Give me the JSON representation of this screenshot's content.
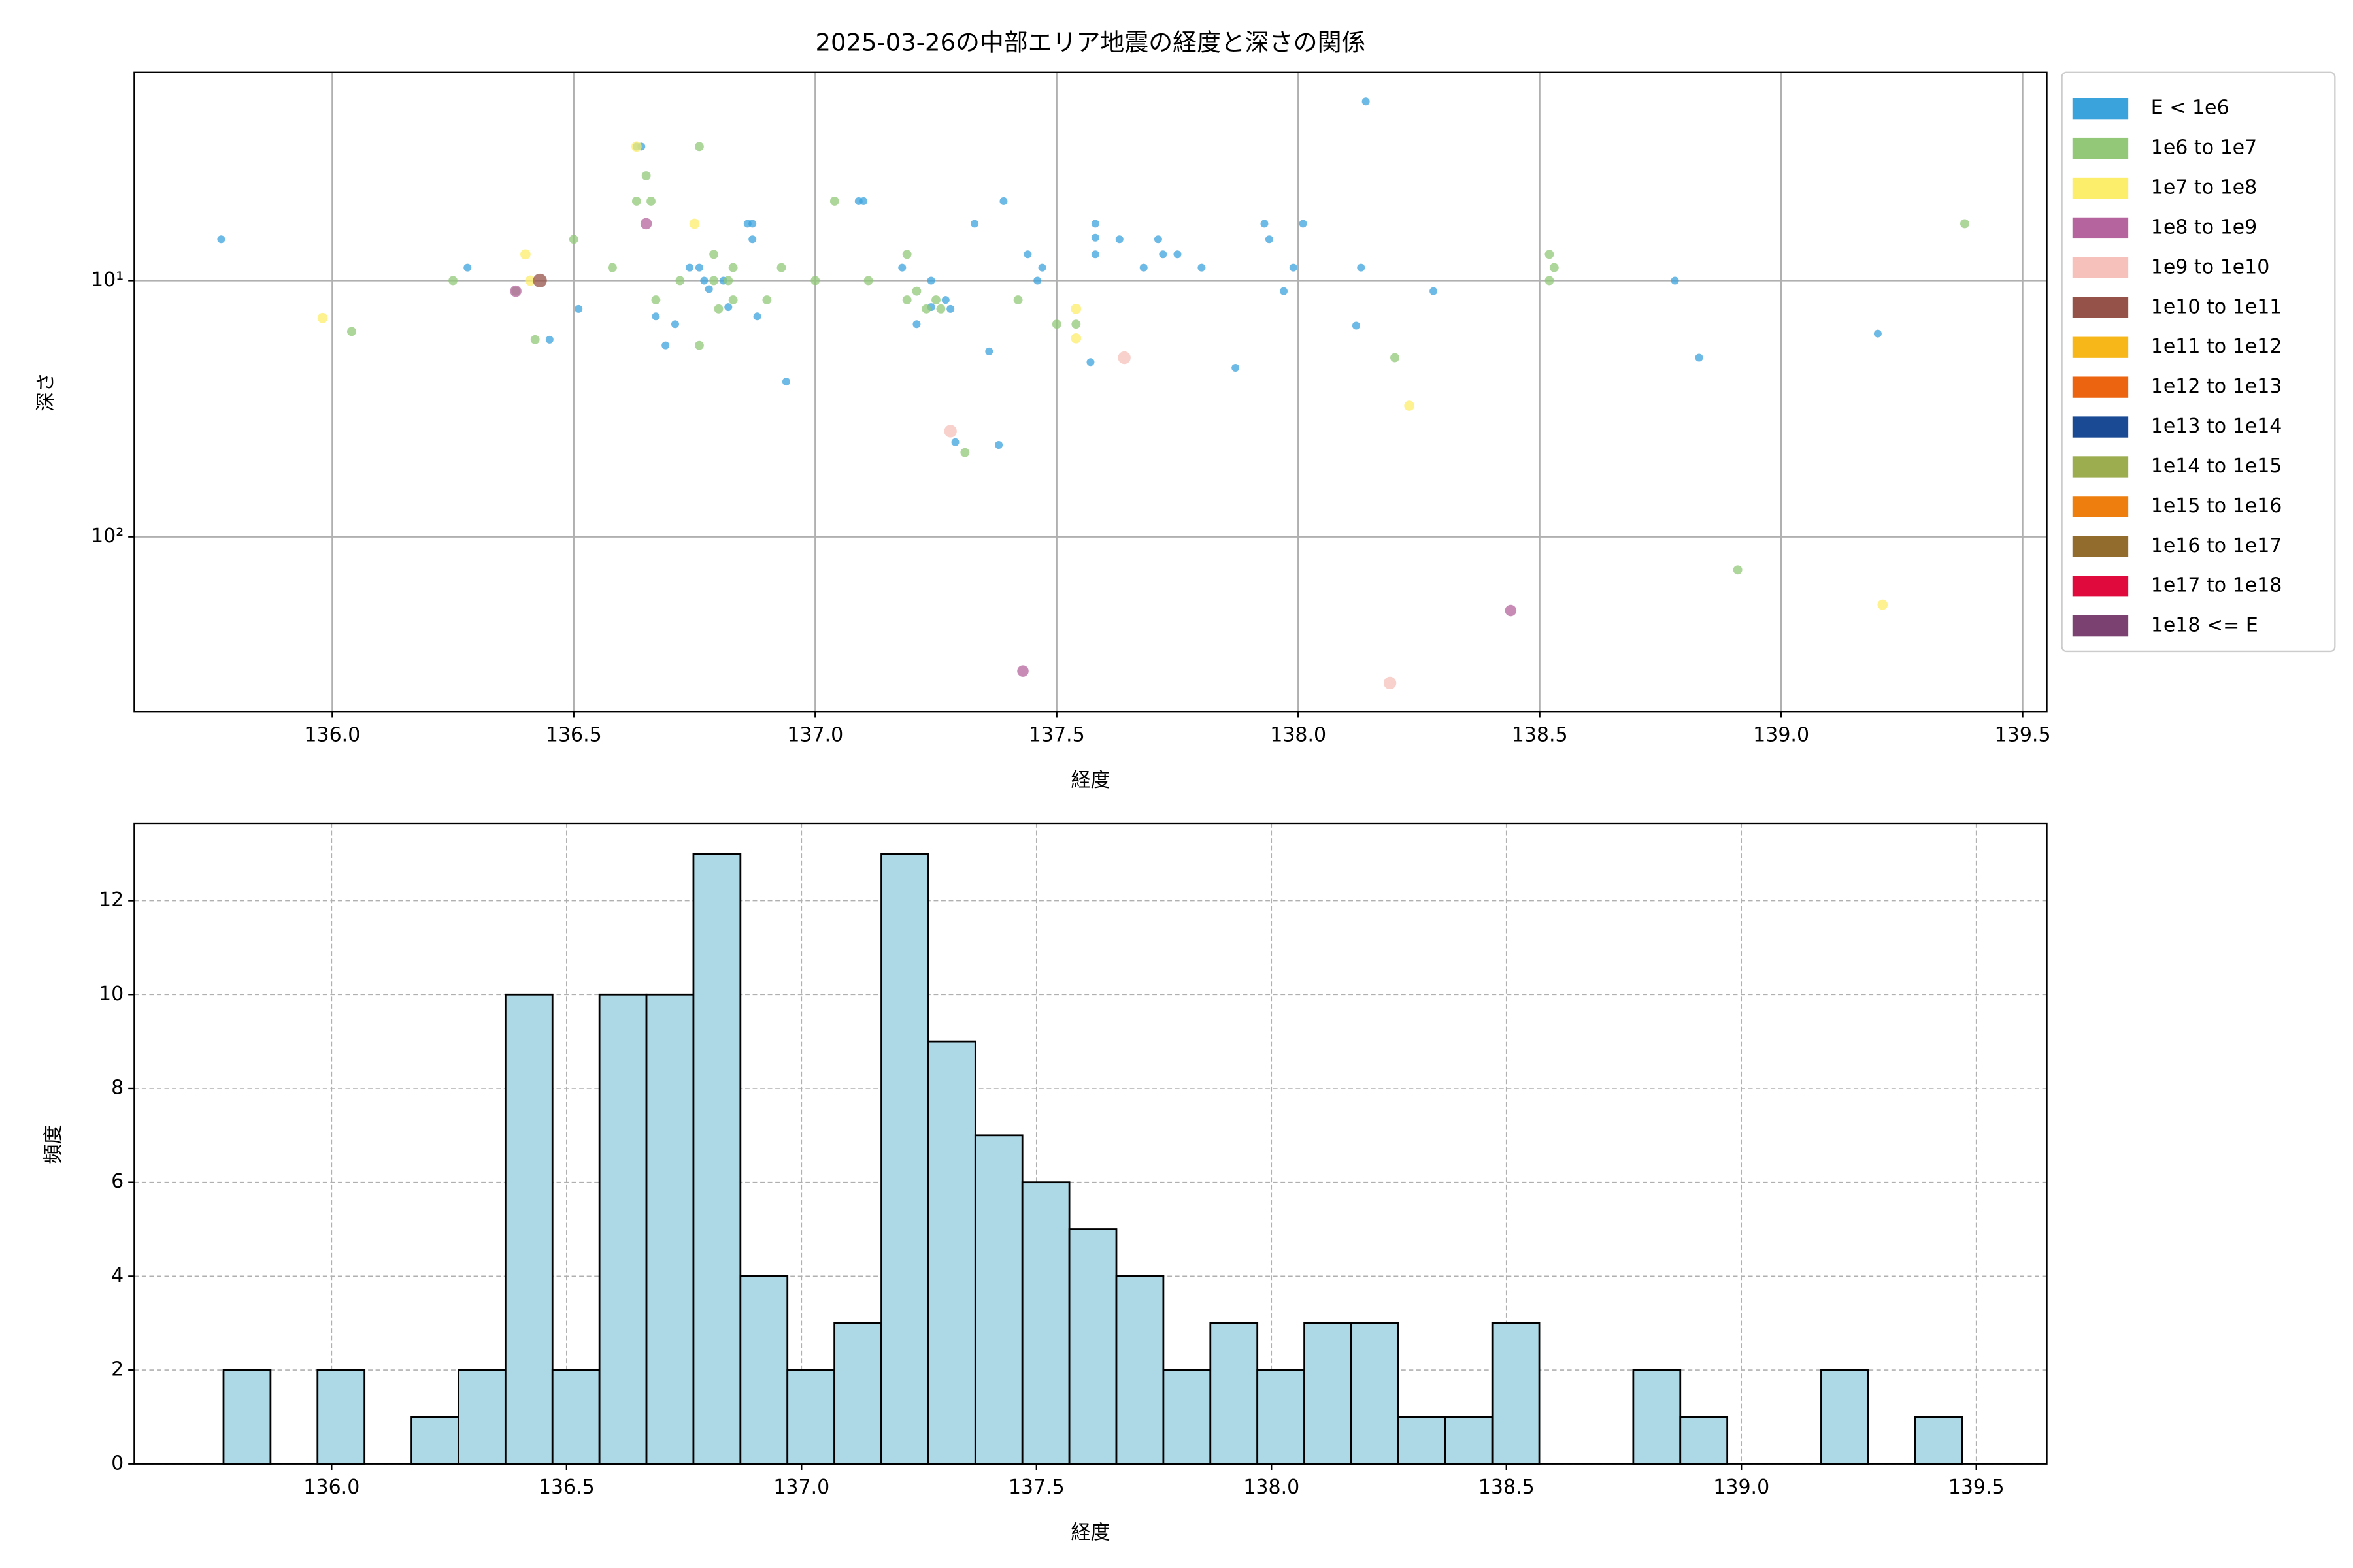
{
  "chart_data": [
    {
      "type": "scatter",
      "title": "2025-03-26の中部エリア地震の経度と深さの関係",
      "xlabel": "経度",
      "ylabel": "深さ",
      "xlim": [
        135.59,
        139.55
      ],
      "ylim": [
        1.54,
        481
      ],
      "y_log": true,
      "y_inverted": true,
      "grid": true,
      "legend": "outside-right",
      "xticks": [
        {
          "value": 136.0,
          "label": "136.0"
        },
        {
          "value": 136.5,
          "label": "136.5"
        },
        {
          "value": 137.0,
          "label": "137.0"
        },
        {
          "value": 137.5,
          "label": "137.5"
        },
        {
          "value": 138.0,
          "label": "138.0"
        },
        {
          "value": 138.5,
          "label": "138.5"
        },
        {
          "value": 139.0,
          "label": "139.0"
        },
        {
          "value": 139.5,
          "label": "139.5"
        }
      ],
      "yticks": [
        {
          "value": 10,
          "label": "10¹"
        },
        {
          "value": 100,
          "label": "10²"
        }
      ],
      "series": [
        {
          "name": "E < 1e6",
          "color": "#3ba3dc",
          "x": [
            135.77,
            136.28,
            136.51,
            136.45,
            136.63,
            136.64,
            136.67,
            136.69,
            136.71,
            136.74,
            136.76,
            136.77,
            136.78,
            136.81,
            136.82,
            136.86,
            136.87,
            136.87,
            136.88,
            136.94,
            137.09,
            137.1,
            137.18,
            137.21,
            137.24,
            137.24,
            137.27,
            137.28,
            137.29,
            137.33,
            137.36,
            137.38,
            137.39,
            137.44,
            137.46,
            137.47,
            137.57,
            137.58,
            137.58,
            137.58,
            137.63,
            137.68,
            137.71,
            137.72,
            137.75,
            137.8,
            137.87,
            137.93,
            137.94,
            137.97,
            137.99,
            138.01,
            138.12,
            138.13,
            138.14,
            138.28,
            138.78,
            138.83,
            139.2
          ],
          "y": [
            6.9,
            8.9,
            12.9,
            17.0,
            3.0,
            3.0,
            13.8,
            17.9,
            14.8,
            8.9,
            8.9,
            10,
            10.8,
            10,
            12.7,
            6.0,
            6.0,
            6.9,
            13.8,
            24.8,
            4.9,
            4.9,
            8.9,
            14.8,
            10,
            12.7,
            11.9,
            12.9,
            42.7,
            6.0,
            18.9,
            43.8,
            4.9,
            7.9,
            10,
            8.9,
            20.8,
            6.0,
            6.8,
            7.9,
            6.9,
            8.9,
            6.9,
            7.9,
            7.9,
            8.9,
            21.9,
            6.0,
            6.9,
            11.0,
            8.9,
            6.0,
            15.0,
            8.9,
            2.0,
            11.0,
            10,
            20.0,
            16.1
          ]
        },
        {
          "name": "1e6 to 1e7",
          "color": "#92c878",
          "x": [
            136.04,
            136.25,
            136.38,
            136.42,
            136.5,
            136.58,
            136.63,
            136.66,
            136.65,
            136.67,
            136.72,
            136.76,
            136.76,
            136.79,
            136.79,
            136.8,
            136.83,
            136.82,
            136.83,
            136.9,
            136.93,
            137.0,
            137.04,
            137.11,
            137.19,
            137.21,
            137.19,
            137.23,
            137.25,
            137.26,
            137.31,
            137.42,
            137.5,
            137.54,
            138.2,
            138.52,
            138.53,
            138.52,
            138.91,
            139.38
          ],
          "y": [
            15.8,
            10,
            11.0,
            17.0,
            6.9,
            8.9,
            4.9,
            4.9,
            3.9,
            11.9,
            10,
            3.0,
            17.9,
            10,
            7.9,
            12.9,
            8.9,
            10,
            11.9,
            11.9,
            8.9,
            10,
            4.9,
            10,
            7.9,
            11.0,
            11.9,
            12.9,
            11.9,
            12.9,
            46.9,
            11.9,
            14.8,
            14.8,
            20.0,
            7.9,
            8.9,
            10,
            134.6,
            6.0
          ]
        },
        {
          "name": "1e7 to 1e8",
          "color": "#fcee6a",
          "x": [
            135.98,
            136.4,
            136.41,
            136.63,
            136.75,
            137.54,
            137.54,
            138.23,
            139.21
          ],
          "y": [
            14.0,
            7.9,
            10,
            3.0,
            6.0,
            12.9,
            16.8,
            30.8,
            184
          ]
        },
        {
          "name": "1e8 to 1e9",
          "color": "#b5649e",
          "x": [
            136.38,
            136.65,
            137.43,
            138.44
          ],
          "y": [
            11.0,
            6.0,
            334,
            194
          ]
        },
        {
          "name": "1e9 to 1e10",
          "color": "#f6c1bb",
          "x": [
            137.28,
            137.64,
            138.19
          ],
          "y": [
            38.7,
            20.0,
            372
          ]
        },
        {
          "name": "1e10 to 1e11",
          "color": "#955249",
          "x": [
            136.43
          ],
          "y": [
            10
          ]
        },
        {
          "name": "1e11 to 1e12",
          "color": "#f7b719",
          "x": [],
          "y": []
        },
        {
          "name": "1e12 to 1e13",
          "color": "#ed6410",
          "x": [],
          "y": []
        },
        {
          "name": "1e13 to 1e14",
          "color": "#1b4a94",
          "x": [],
          "y": []
        },
        {
          "name": "1e14 to 1e15",
          "color": "#9bad4f",
          "x": [],
          "y": []
        },
        {
          "name": "1e15 to 1e16",
          "color": "#ee7f0e",
          "x": [],
          "y": []
        },
        {
          "name": "1e16 to 1e17",
          "color": "#926c2c",
          "x": [],
          "y": []
        },
        {
          "name": "1e17 to 1e18",
          "color": "#e00a3c",
          "x": [],
          "y": []
        },
        {
          "name": "1e18 <= E",
          "color": "#7b4170",
          "x": [],
          "y": []
        }
      ]
    },
    {
      "type": "histogram",
      "xlabel": "経度",
      "ylabel": "頻度",
      "color": "#add8e6",
      "edgecolor": "#000000",
      "grid": true,
      "xlim": [
        135.58,
        139.65
      ],
      "ylim": [
        0,
        13.65
      ],
      "xticks": [
        {
          "value": 136.0,
          "label": "136.0"
        },
        {
          "value": 136.5,
          "label": "136.5"
        },
        {
          "value": 137.0,
          "label": "137.0"
        },
        {
          "value": 137.5,
          "label": "137.5"
        },
        {
          "value": 138.0,
          "label": "138.0"
        },
        {
          "value": 138.5,
          "label": "138.5"
        },
        {
          "value": 139.0,
          "label": "139.0"
        },
        {
          "value": 139.5,
          "label": "139.5"
        }
      ],
      "yticks": [
        0,
        2,
        4,
        6,
        8,
        10,
        12
      ],
      "bins": [
        135.77,
        135.87,
        135.97,
        136.07,
        136.17,
        136.27,
        136.37,
        136.47,
        136.57,
        136.67,
        136.77,
        136.87,
        136.97,
        137.07,
        137.17,
        137.27,
        137.37,
        137.47,
        137.57,
        137.67,
        137.77,
        137.87,
        137.97,
        138.07,
        138.17,
        138.27,
        138.37,
        138.47,
        138.57,
        138.67,
        138.77,
        138.87,
        138.97,
        139.07,
        139.17,
        139.27,
        139.37,
        139.47
      ],
      "counts": [
        2,
        0,
        2,
        0,
        1,
        2,
        10,
        2,
        10,
        10,
        13,
        4,
        2,
        3,
        13,
        9,
        7,
        6,
        5,
        4,
        2,
        3,
        2,
        3,
        3,
        1,
        1,
        3,
        0,
        0,
        2,
        1,
        0,
        0,
        2,
        0,
        1
      ]
    }
  ]
}
